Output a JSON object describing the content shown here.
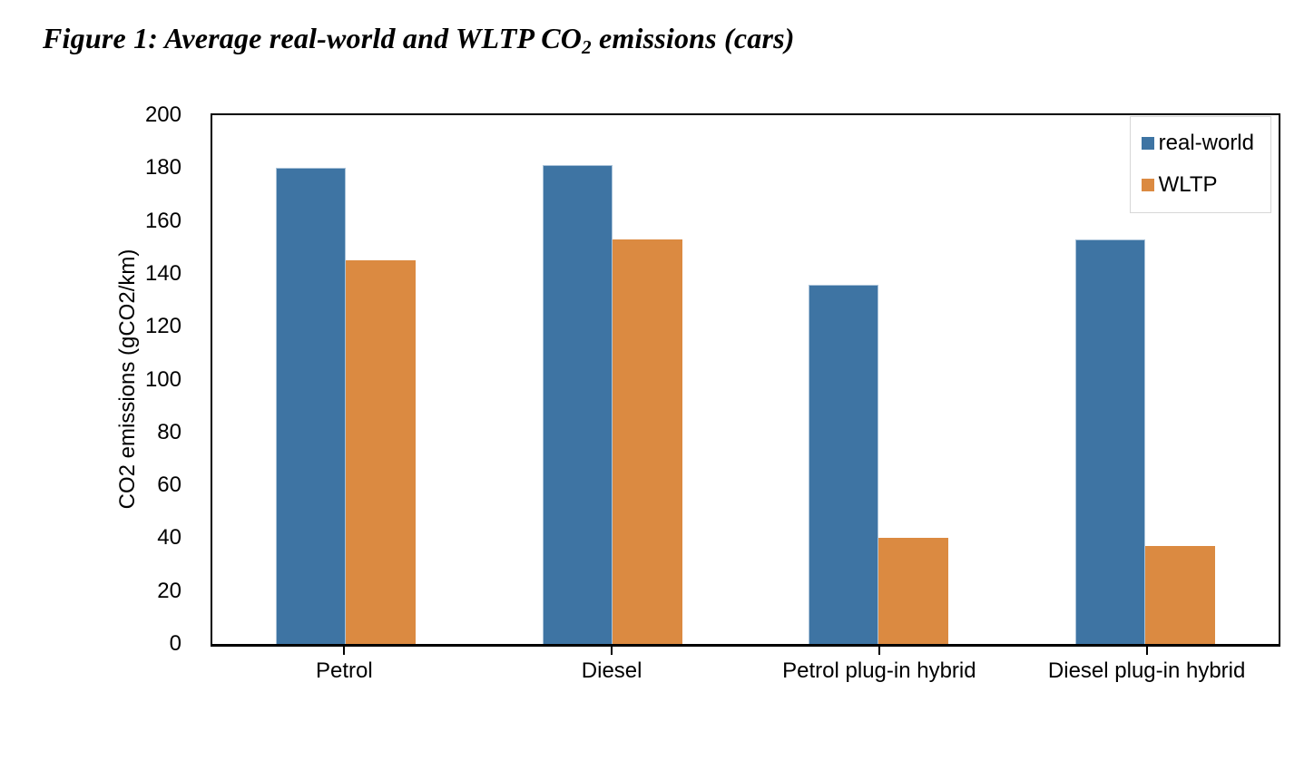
{
  "figure": {
    "title_prefix": "Figure 1: Average real-world and WLTP CO",
    "title_sub": "2",
    "title_suffix": " emissions (cars)"
  },
  "chart_data": {
    "type": "bar",
    "title": "Figure 1: Average real-world and WLTP CO2 emissions (cars)",
    "categories": [
      "Petrol",
      "Diesel",
      "Petrol plug-in hybrid",
      "Diesel plug-in hybrid"
    ],
    "series": [
      {
        "name": "real-world",
        "color": "#3e74a3",
        "values": [
          180,
          181,
          136,
          153
        ]
      },
      {
        "name": "WLTP",
        "color": "#db8a41",
        "values": [
          145,
          153,
          40,
          37
        ]
      }
    ],
    "xlabel": "",
    "ylabel": "CO2 emissions (gCO2/km)",
    "ylim": [
      0,
      200
    ],
    "yticks": [
      0,
      20,
      40,
      60,
      80,
      100,
      120,
      140,
      160,
      180,
      200
    ],
    "grid": false,
    "legend_position": "top-right-inside",
    "legend": [
      "real-world",
      "WLTP"
    ],
    "axis_color": "#000000",
    "legend_border_color": "#d7d7d7"
  }
}
